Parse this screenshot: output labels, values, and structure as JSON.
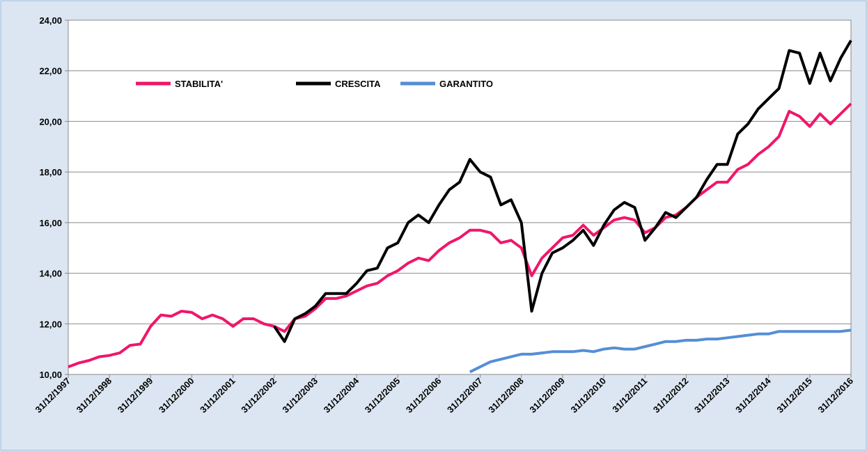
{
  "chart_data": {
    "type": "line",
    "categories": [
      "31/12/1997",
      null,
      null,
      null,
      "31/12/1998",
      null,
      null,
      null,
      "31/12/1999",
      null,
      null,
      null,
      "31/12/2000",
      null,
      null,
      null,
      "31/12/2001",
      null,
      null,
      null,
      "31/12/2002",
      null,
      null,
      null,
      "31/12/2003",
      null,
      null,
      null,
      "31/12/2004",
      null,
      null,
      null,
      "31/12/2005",
      null,
      null,
      null,
      "31/12/2006",
      null,
      null,
      null,
      "31/12/2007",
      null,
      null,
      null,
      "31/12/2008",
      null,
      null,
      null,
      "31/12/2009",
      null,
      null,
      null,
      "31/12/2010",
      null,
      null,
      null,
      "31/12/2011",
      null,
      null,
      null,
      "31/12/2012",
      null,
      null,
      null,
      "31/12/2013",
      null,
      null,
      null,
      "31/12/2014",
      null,
      null,
      null,
      "31/12/2015",
      null,
      null,
      null,
      "31/12/2016"
    ],
    "series": [
      {
        "name": "STABILITA'",
        "color": "#f0166a",
        "values": [
          10.3,
          10.45,
          10.55,
          10.7,
          10.75,
          10.85,
          11.15,
          11.2,
          11.9,
          12.35,
          12.3,
          12.5,
          12.45,
          12.2,
          12.35,
          12.2,
          11.9,
          12.2,
          12.2,
          12.0,
          11.9,
          11.7,
          12.2,
          12.3,
          12.6,
          13.0,
          13.0,
          13.1,
          13.3,
          13.5,
          13.6,
          13.9,
          14.1,
          14.4,
          14.6,
          14.5,
          14.9,
          15.2,
          15.4,
          15.7,
          15.7,
          15.6,
          15.2,
          15.3,
          15.0,
          13.9,
          14.6,
          15.0,
          15.4,
          15.5,
          15.9,
          15.5,
          15.8,
          16.1,
          16.2,
          16.1,
          15.6,
          15.8,
          16.2,
          16.3,
          16.6,
          17.0,
          17.3,
          17.6,
          17.6,
          18.1,
          18.3,
          18.7,
          19.0,
          19.4,
          20.4,
          20.2,
          19.8,
          20.3,
          19.9,
          20.3,
          20.7
        ]
      },
      {
        "name": "CRESCITA",
        "color": "#000000",
        "values": [
          null,
          null,
          null,
          null,
          null,
          null,
          null,
          null,
          null,
          null,
          null,
          null,
          null,
          null,
          null,
          null,
          null,
          null,
          null,
          null,
          11.9,
          11.3,
          12.2,
          12.4,
          12.7,
          13.2,
          13.2,
          13.2,
          13.6,
          14.1,
          14.2,
          15.0,
          15.2,
          16.0,
          16.3,
          16.0,
          16.7,
          17.3,
          17.6,
          18.5,
          18.0,
          17.8,
          16.7,
          16.9,
          16.0,
          12.5,
          14.0,
          14.8,
          15.0,
          15.3,
          15.7,
          15.1,
          15.9,
          16.5,
          16.8,
          16.6,
          15.3,
          15.8,
          16.4,
          16.2,
          16.6,
          17.0,
          17.7,
          18.3,
          18.3,
          19.5,
          19.9,
          20.5,
          20.9,
          21.3,
          22.8,
          22.7,
          21.5,
          22.7,
          21.6,
          22.5,
          23.2
        ]
      },
      {
        "name": "GARANTITO",
        "color": "#558ed5",
        "values": [
          null,
          null,
          null,
          null,
          null,
          null,
          null,
          null,
          null,
          null,
          null,
          null,
          null,
          null,
          null,
          null,
          null,
          null,
          null,
          null,
          null,
          null,
          null,
          null,
          null,
          null,
          null,
          null,
          null,
          null,
          null,
          null,
          null,
          null,
          null,
          null,
          null,
          null,
          null,
          10.1,
          10.3,
          10.5,
          10.6,
          10.7,
          10.8,
          10.8,
          10.85,
          10.9,
          10.9,
          10.9,
          10.95,
          10.9,
          11.0,
          11.05,
          11.0,
          11.0,
          11.1,
          11.2,
          11.3,
          11.3,
          11.35,
          11.35,
          11.4,
          11.4,
          11.45,
          11.5,
          11.55,
          11.6,
          11.6,
          11.7,
          11.7,
          11.7,
          11.7,
          11.7,
          11.7,
          11.7,
          11.75
        ]
      }
    ],
    "ylim": [
      10,
      24
    ],
    "yticks": [
      {
        "value": 10,
        "label": "10,00"
      },
      {
        "value": 12,
        "label": "12,00"
      },
      {
        "value": 14,
        "label": "14,00"
      },
      {
        "value": 16,
        "label": "16,00"
      },
      {
        "value": 18,
        "label": "18,00"
      },
      {
        "value": 20,
        "label": "20,00"
      },
      {
        "value": 22,
        "label": "22,00"
      },
      {
        "value": 24,
        "label": "24,00"
      }
    ],
    "grid": true,
    "legend": "top-left"
  }
}
